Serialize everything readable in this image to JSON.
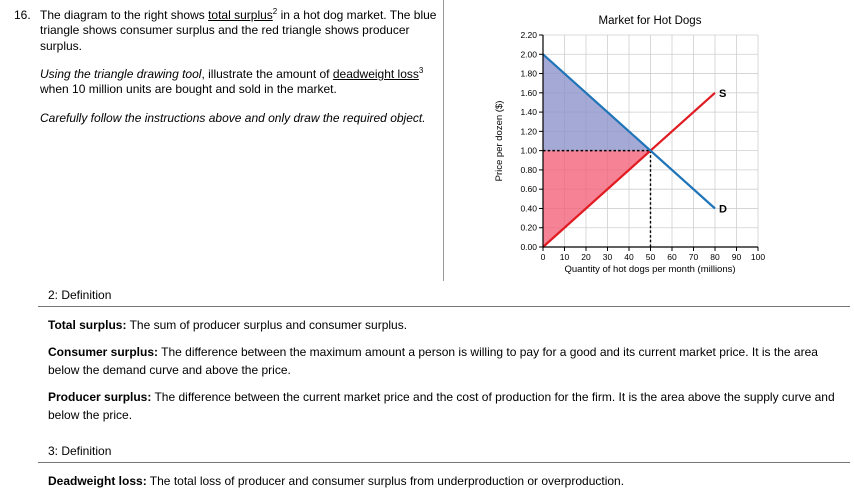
{
  "question": {
    "number": "16.",
    "p1": {
      "pre": "The diagram to the right shows ",
      "term": "total surplus",
      "sup": "2",
      "post": " in a hot dog market. The blue triangle shows consumer surplus and the red triangle shows producer surplus."
    },
    "p2": {
      "italic": "Using the triangle drawing tool",
      "mid": ", illustrate the amount of ",
      "term": "deadweight loss",
      "sup": "3",
      "post": " when 10 million units are bought and sold in the market."
    },
    "p3": "Carefully follow the instructions above and only draw the required object."
  },
  "definitions": {
    "section2": {
      "heading": "2: Definition",
      "items": [
        {
          "label": "Total surplus:",
          "text": " The sum of producer surplus and consumer surplus."
        },
        {
          "label": "Consumer surplus:",
          "text": " The difference between the maximum amount a person is willing to pay for a good and its current market price. It is the area below the demand curve and above the price."
        },
        {
          "label": "Producer surplus:",
          "text": " The difference between the current market price and the cost of production for the firm. It is the area above the supply curve and below the price."
        }
      ]
    },
    "section3": {
      "heading": "3: Definition",
      "items": [
        {
          "label": "Deadweight loss:",
          "text": " The total loss of producer and consumer surplus from underproduction or overproduction."
        }
      ]
    }
  },
  "chart_data": {
    "type": "line",
    "title": "Market for Hot Dogs",
    "xlabel": "Quantity of hot dogs per month (millions)",
    "ylabel": "Price per dozen ($)",
    "xlim": [
      0,
      100
    ],
    "ylim": [
      0,
      2.2
    ],
    "x_ticks": [
      0,
      10,
      20,
      30,
      40,
      50,
      60,
      70,
      80,
      90,
      100
    ],
    "x_tick_labels": [
      "0",
      "10",
      "20",
      "30",
      "40",
      "50",
      "60",
      "70",
      "80",
      "90",
      "100"
    ],
    "y_ticks": [
      0,
      0.2,
      0.4,
      0.6,
      0.8,
      1.0,
      1.2,
      1.4,
      1.6,
      1.8,
      2.0,
      2.2
    ],
    "y_tick_labels": [
      "0.00",
      "0.20",
      "0.40",
      "0.60",
      "0.80",
      "1.00",
      "1.20",
      "1.40",
      "1.60",
      "1.80",
      "2.00",
      "2.20"
    ],
    "grid": true,
    "legend_position": "inline-end-labels",
    "series": [
      {
        "name": "supply",
        "label": "S",
        "color": "#e11b22",
        "points": [
          [
            0,
            0.0
          ],
          [
            80,
            1.6
          ]
        ]
      },
      {
        "name": "demand",
        "label": "D",
        "color": "#2074b8",
        "points": [
          [
            0,
            2.0
          ],
          [
            80,
            0.4
          ]
        ]
      }
    ],
    "areas": [
      {
        "name": "consumer-surplus",
        "color": "#8f93cc",
        "opacity": 0.8,
        "points": [
          [
            0,
            2.0
          ],
          [
            0,
            1.0
          ],
          [
            50,
            1.0
          ]
        ]
      },
      {
        "name": "producer-surplus",
        "color": "#f2637a",
        "opacity": 0.8,
        "points": [
          [
            0,
            1.0
          ],
          [
            50,
            1.0
          ],
          [
            0,
            0.0
          ]
        ]
      }
    ],
    "dotted_lines": [
      {
        "name": "equilibrium-price",
        "from": [
          0,
          1.0
        ],
        "to": [
          50,
          1.0
        ]
      },
      {
        "name": "equilibrium-quantity",
        "from": [
          50,
          0.0
        ],
        "to": [
          50,
          1.0
        ]
      }
    ],
    "equilibrium": {
      "quantity": 50,
      "price": 1.0
    }
  }
}
